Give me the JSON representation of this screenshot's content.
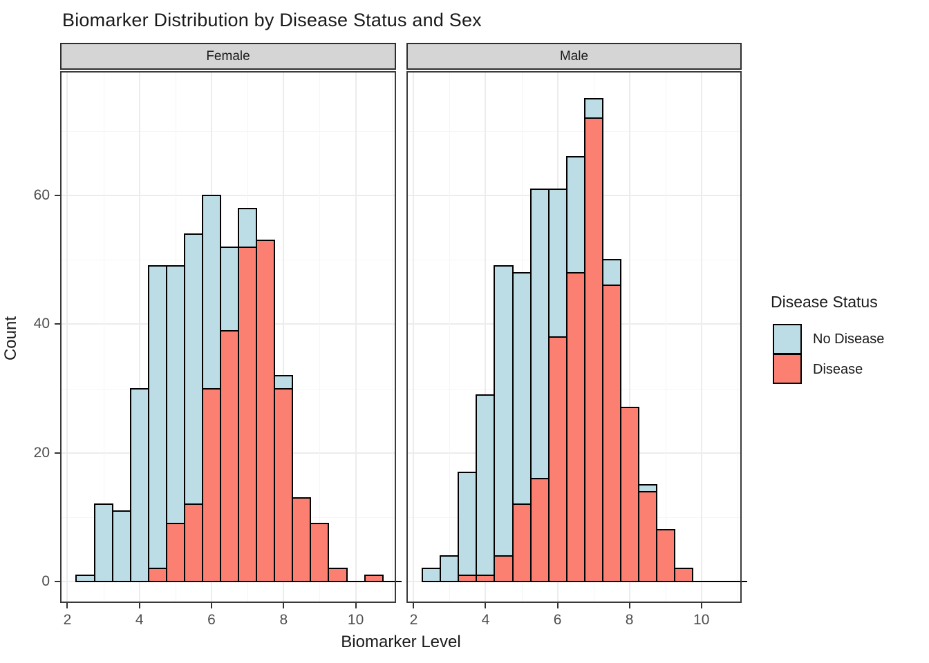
{
  "title": "Biomarker Distribution by Disease Status and Sex",
  "legend": {
    "title": "Disease Status",
    "items": [
      {
        "label": "No Disease",
        "color": "#bcdde6"
      },
      {
        "label": "Disease",
        "color": "#fb8072"
      }
    ]
  },
  "colors": {
    "no_disease_fill": "#bcdde6",
    "disease_fill": "#fb8072",
    "bar_outline": "#000000",
    "strip_background": "#d5d5d5",
    "panel_border": "#3a3a3a",
    "gridline_major": "#ececec",
    "gridline_minor": "#f5f5f5",
    "tick_label_color": "#4d4d4d"
  },
  "chart_data": {
    "type": "bar",
    "subtype": "overlaid-histogram-faceted",
    "title": "Biomarker Distribution by Disease Status and Sex",
    "xlabel": "Biomarker Level",
    "ylabel": "Count",
    "series_names": [
      "No Disease",
      "Disease"
    ],
    "bin_width": 0.5,
    "xlim": [
      1.8,
      11.12
    ],
    "ylim": [
      -3.3,
      79.5
    ],
    "x_major_ticks": [
      2,
      4,
      6,
      8,
      10
    ],
    "x_minor_gridlines": [
      3,
      5,
      7,
      9,
      11
    ],
    "y_major_ticks": [
      0,
      20,
      40,
      60
    ],
    "y_minor_gridlines": [
      10,
      30,
      50,
      70
    ],
    "grid": true,
    "legend_position": "right",
    "baseline_extent": [
      2.25,
      10.75
    ],
    "facets": [
      {
        "label": "Female",
        "bins": [
          {
            "start": 2.25,
            "no_disease": 1,
            "disease": null
          },
          {
            "start": 2.75,
            "no_disease": 12,
            "disease": null
          },
          {
            "start": 3.25,
            "no_disease": 11,
            "disease": null
          },
          {
            "start": 3.75,
            "no_disease": 30,
            "disease": null
          },
          {
            "start": 4.25,
            "no_disease": 49,
            "disease": 2
          },
          {
            "start": 4.75,
            "no_disease": 49,
            "disease": 9
          },
          {
            "start": 5.25,
            "no_disease": 54,
            "disease": 12
          },
          {
            "start": 5.75,
            "no_disease": 60,
            "disease": 30
          },
          {
            "start": 6.25,
            "no_disease": 52,
            "disease": 39
          },
          {
            "start": 6.75,
            "no_disease": 58,
            "disease": 52
          },
          {
            "start": 7.25,
            "no_disease": null,
            "disease": 53
          },
          {
            "start": 7.75,
            "no_disease": 32,
            "disease": 30
          },
          {
            "start": 8.25,
            "no_disease": null,
            "disease": 13
          },
          {
            "start": 8.75,
            "no_disease": null,
            "disease": 9
          },
          {
            "start": 9.25,
            "no_disease": null,
            "disease": 2
          },
          {
            "start": 9.75,
            "no_disease": null,
            "disease": null
          },
          {
            "start": 10.25,
            "no_disease": null,
            "disease": 1
          }
        ]
      },
      {
        "label": "Male",
        "bins": [
          {
            "start": 2.25,
            "no_disease": 2,
            "disease": null
          },
          {
            "start": 2.75,
            "no_disease": 4,
            "disease": null
          },
          {
            "start": 3.25,
            "no_disease": 17,
            "disease": 1
          },
          {
            "start": 3.75,
            "no_disease": 29,
            "disease": 1
          },
          {
            "start": 4.25,
            "no_disease": 49,
            "disease": 4
          },
          {
            "start": 4.75,
            "no_disease": 48,
            "disease": 12
          },
          {
            "start": 5.25,
            "no_disease": 61,
            "disease": 16
          },
          {
            "start": 5.75,
            "no_disease": 61,
            "disease": 38
          },
          {
            "start": 6.25,
            "no_disease": 66,
            "disease": 48
          },
          {
            "start": 6.75,
            "no_disease": 75,
            "disease": 72
          },
          {
            "start": 7.25,
            "no_disease": 50,
            "disease": 46
          },
          {
            "start": 7.75,
            "no_disease": null,
            "disease": 27
          },
          {
            "start": 8.25,
            "no_disease": 15,
            "disease": 14
          },
          {
            "start": 8.75,
            "no_disease": null,
            "disease": 8
          },
          {
            "start": 9.25,
            "no_disease": null,
            "disease": 2
          }
        ]
      }
    ]
  }
}
